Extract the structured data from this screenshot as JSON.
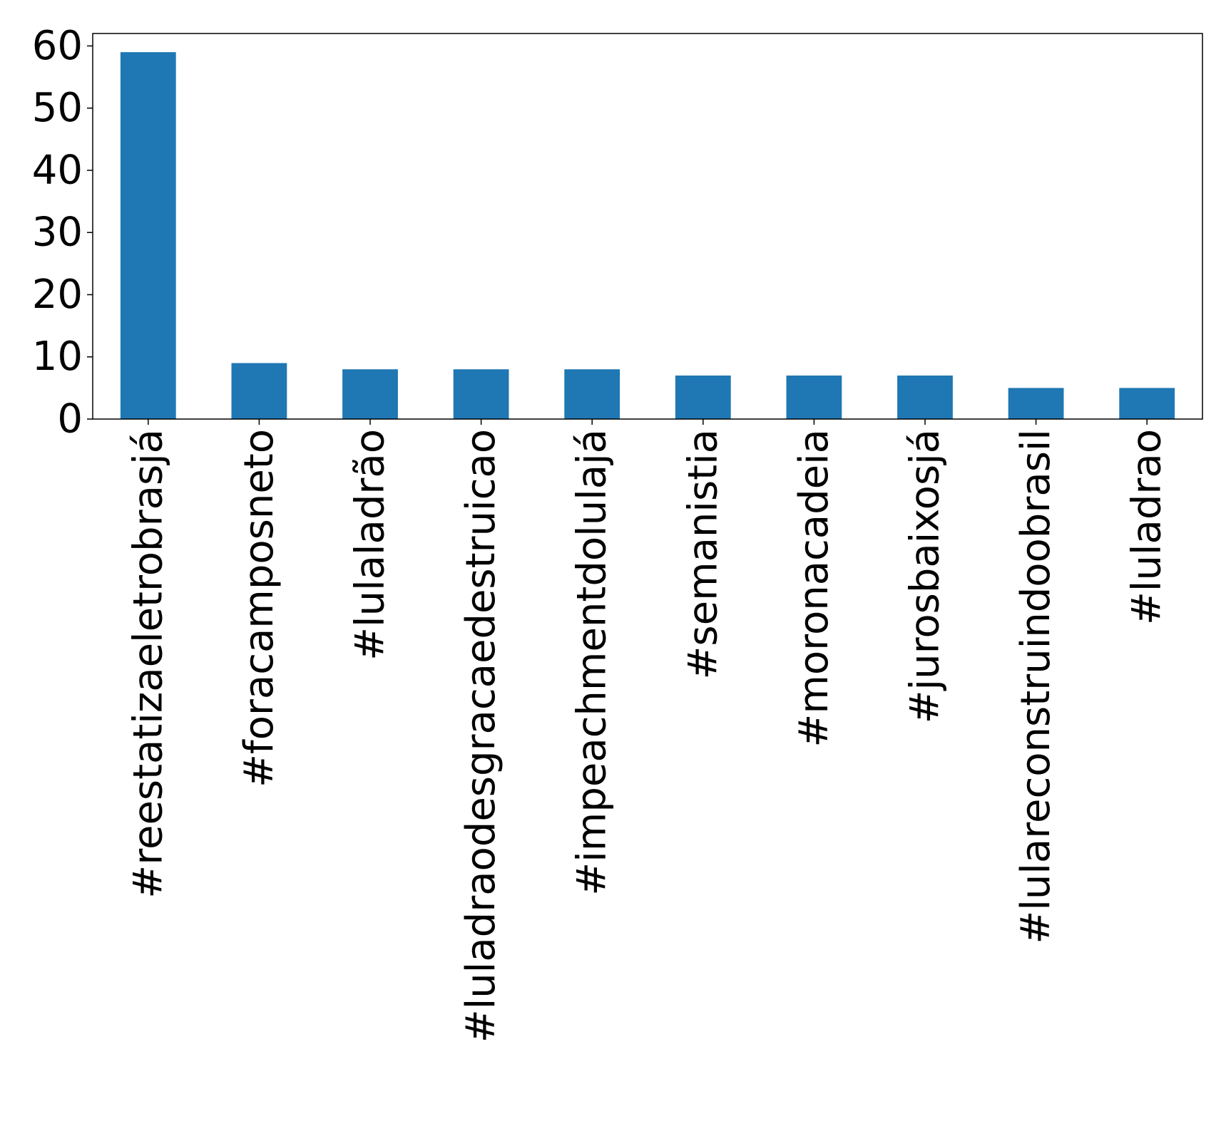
{
  "chart_data": {
    "type": "bar",
    "title": "",
    "xlabel": "",
    "ylabel": "",
    "categories": [
      "#reestatizaeletrobrasjá",
      "#foracamposneto",
      "#lulaladrão",
      "#luladraodesgracaedestruicao",
      "#impeachmentdolulajá",
      "#semanistia",
      "#moronacadeia",
      "#jurosbaixosjá",
      "#lulareconstruindoobrasil",
      "#luladrao"
    ],
    "values": [
      59,
      9,
      8,
      8,
      8,
      7,
      7,
      7,
      5,
      5
    ],
    "ylim": [
      0,
      62
    ],
    "yticks": [
      0,
      10,
      20,
      30,
      40,
      50,
      60
    ],
    "grid": false,
    "legend": "none",
    "bar_color": "#1f77b4"
  }
}
